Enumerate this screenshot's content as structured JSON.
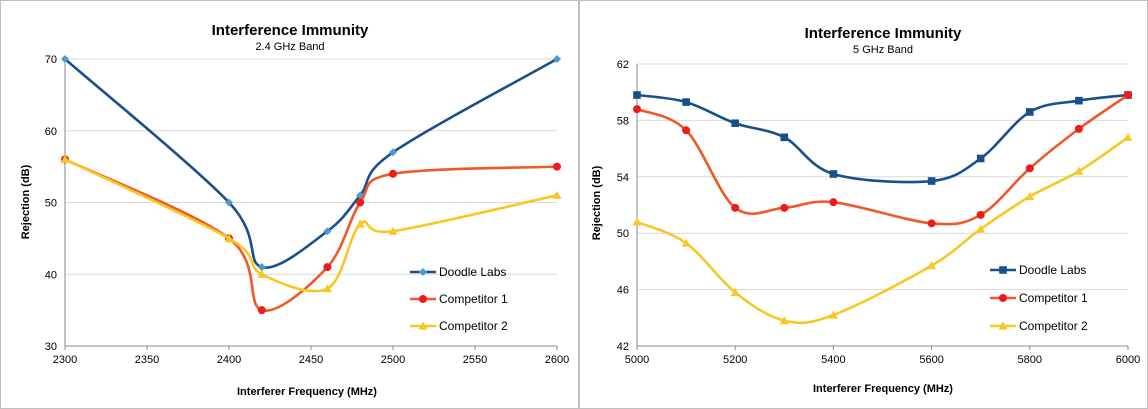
{
  "chart_data": [
    {
      "type": "line",
      "title": "Interference Immunity",
      "subtitle": "2.4 GHz Band",
      "xlabel": "Interferer Frequency (MHz)",
      "ylabel": "Rejection (dB)",
      "xlim": [
        2300,
        2600
      ],
      "ylim": [
        30,
        70
      ],
      "xticks": [
        2300,
        2350,
        2400,
        2450,
        2500,
        2550,
        2600
      ],
      "yticks": [
        30,
        40,
        50,
        60,
        70
      ],
      "grid": true,
      "legend_position": "right",
      "series": [
        {
          "name": "Doodle Labs",
          "color": "#17508a",
          "marker": "diamond",
          "marker_color": "#4a9bd4",
          "points": [
            [
              2300,
              70
            ],
            [
              2400,
              50
            ],
            [
              2420,
              41
            ],
            [
              2460,
              46
            ],
            [
              2480,
              51
            ],
            [
              2500,
              57
            ],
            [
              2600,
              70
            ]
          ]
        },
        {
          "name": "Competitor 1",
          "color": "#f0582a",
          "marker": "circle",
          "marker_color": "#ee1b1b",
          "points": [
            [
              2300,
              56
            ],
            [
              2400,
              45
            ],
            [
              2420,
              35
            ],
            [
              2460,
              41
            ],
            [
              2480,
              50
            ],
            [
              2500,
              54
            ],
            [
              2600,
              55
            ]
          ]
        },
        {
          "name": "Competitor 2",
          "color": "#f7c824",
          "marker": "triangle",
          "marker_color": "#f7c824",
          "points": [
            [
              2300,
              56
            ],
            [
              2400,
              45
            ],
            [
              2420,
              40
            ],
            [
              2460,
              38
            ],
            [
              2480,
              47
            ],
            [
              2500,
              46
            ],
            [
              2600,
              51
            ]
          ]
        }
      ]
    },
    {
      "type": "line",
      "title": "Interference Immunity",
      "subtitle": "5 GHz Band",
      "xlabel": "Interferer Frequency (MHz)",
      "ylabel": "Rejection (dB)",
      "xlim": [
        5000,
        6000
      ],
      "ylim": [
        42,
        62
      ],
      "xticks": [
        5000,
        5200,
        5400,
        5600,
        5800,
        6000
      ],
      "yticks": [
        42,
        46,
        50,
        54,
        58,
        62
      ],
      "grid": true,
      "legend_position": "right",
      "series": [
        {
          "name": "Doodle Labs",
          "color": "#17508a",
          "marker": "square",
          "marker_color": "#17508a",
          "points": [
            [
              5000,
              59.8
            ],
            [
              5100,
              59.3
            ],
            [
              5200,
              57.8
            ],
            [
              5300,
              56.8
            ],
            [
              5400,
              54.2
            ],
            [
              5600,
              53.7
            ],
            [
              5700,
              55.3
            ],
            [
              5800,
              58.6
            ],
            [
              5900,
              59.4
            ],
            [
              6000,
              59.8
            ]
          ]
        },
        {
          "name": "Competitor 1",
          "color": "#f0582a",
          "marker": "circle",
          "marker_color": "#ee1b1b",
          "points": [
            [
              5000,
              58.8
            ],
            [
              5100,
              57.3
            ],
            [
              5200,
              51.8
            ],
            [
              5300,
              51.8
            ],
            [
              5400,
              52.2
            ],
            [
              5600,
              50.7
            ],
            [
              5700,
              51.3
            ],
            [
              5800,
              54.6
            ],
            [
              5900,
              57.4
            ],
            [
              6000,
              59.8
            ]
          ]
        },
        {
          "name": "Competitor 2",
          "color": "#f7c824",
          "marker": "triangle",
          "marker_color": "#f7c824",
          "points": [
            [
              5000,
              50.8
            ],
            [
              5100,
              49.3
            ],
            [
              5200,
              45.8
            ],
            [
              5300,
              43.8
            ],
            [
              5400,
              44.2
            ],
            [
              5600,
              47.7
            ],
            [
              5700,
              50.3
            ],
            [
              5800,
              52.6
            ],
            [
              5900,
              54.4
            ],
            [
              6000,
              56.8
            ]
          ]
        }
      ]
    }
  ]
}
